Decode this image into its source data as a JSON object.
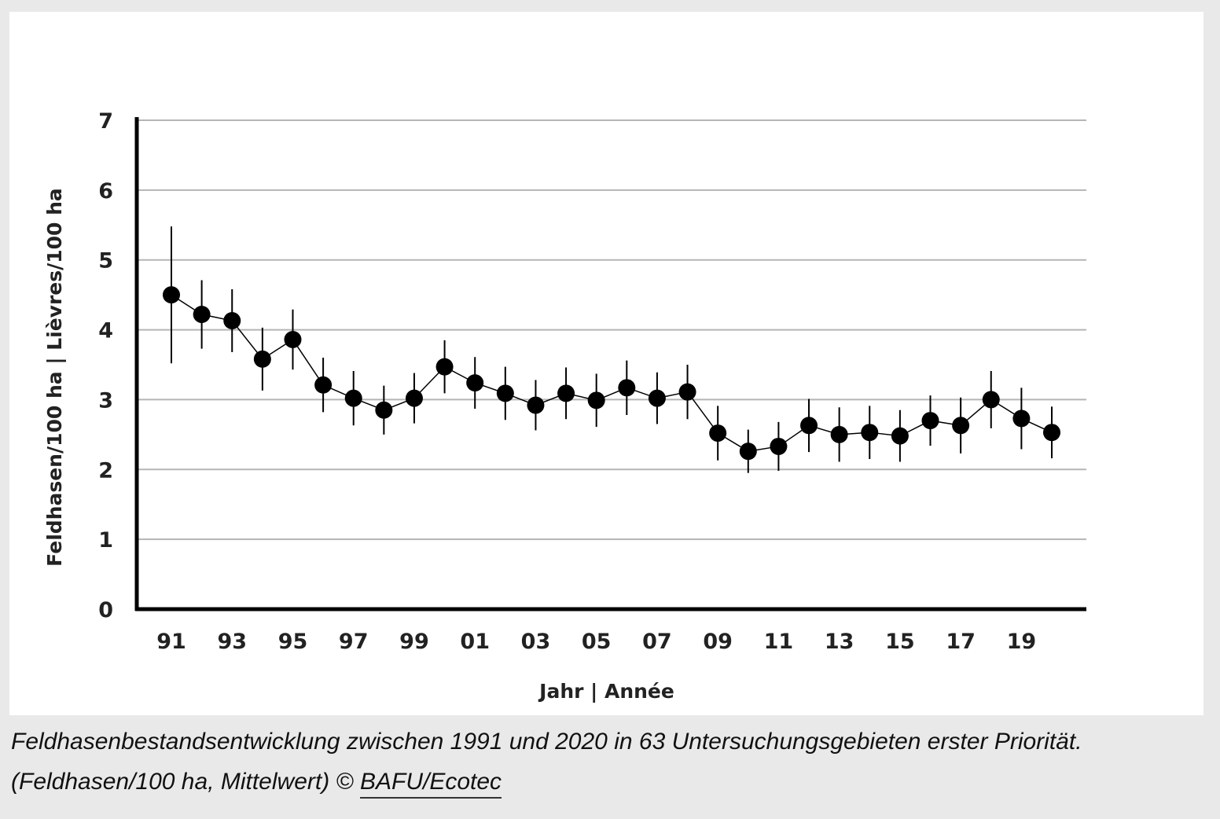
{
  "chart_data": {
    "type": "line",
    "xlabel": "Jahr | Année",
    "ylabel": "Feldhasen/100 ha | Lièvres/100 ha",
    "ylim": [
      0,
      7
    ],
    "yticks": [
      "0",
      "1",
      "2",
      "3",
      "4",
      "5",
      "6",
      "7"
    ],
    "xticks": [
      "91",
      "93",
      "95",
      "97",
      "99",
      "01",
      "03",
      "05",
      "07",
      "09",
      "11",
      "13",
      "15",
      "17",
      "19"
    ],
    "grid": true,
    "legend": "none",
    "series": [
      {
        "x": [
          1991,
          1992,
          1993,
          1994,
          1995,
          1996,
          1997,
          1998,
          1999,
          2000,
          2001,
          2002,
          2003,
          2004,
          2005,
          2006,
          2007,
          2008,
          2009,
          2010,
          2011,
          2012,
          2013,
          2014,
          2015,
          2016,
          2017,
          2018,
          2019,
          2020
        ],
        "y": [
          4.5,
          4.22,
          4.13,
          3.58,
          3.86,
          3.21,
          3.02,
          2.85,
          3.02,
          3.47,
          3.24,
          3.09,
          2.92,
          3.09,
          2.99,
          3.17,
          3.02,
          3.11,
          2.52,
          2.26,
          2.33,
          2.63,
          2.5,
          2.53,
          2.48,
          2.7,
          2.63,
          3.0,
          2.73,
          2.53
        ],
        "err_low": [
          3.52,
          3.73,
          3.68,
          3.13,
          3.43,
          2.82,
          2.63,
          2.5,
          2.66,
          3.09,
          2.87,
          2.71,
          2.56,
          2.72,
          2.61,
          2.78,
          2.65,
          2.72,
          2.13,
          1.95,
          1.98,
          2.25,
          2.11,
          2.15,
          2.11,
          2.34,
          2.23,
          2.59,
          2.29,
          2.16
        ],
        "err_high": [
          5.48,
          4.71,
          4.58,
          4.03,
          4.29,
          3.6,
          3.41,
          3.2,
          3.38,
          3.85,
          3.61,
          3.47,
          3.28,
          3.46,
          3.37,
          3.56,
          3.39,
          3.5,
          2.91,
          2.57,
          2.68,
          3.01,
          2.89,
          2.91,
          2.85,
          3.06,
          3.03,
          3.41,
          3.17,
          2.9
        ]
      }
    ]
  },
  "caption": {
    "text": "Feldhasenbestandsentwicklung zwischen 1991 und 2020 in 63 Untersuchungsgebieten erster Priorität. (Feldhasen/100 ha, Mittelwert) © ",
    "link": "BAFU/Ecotec"
  }
}
